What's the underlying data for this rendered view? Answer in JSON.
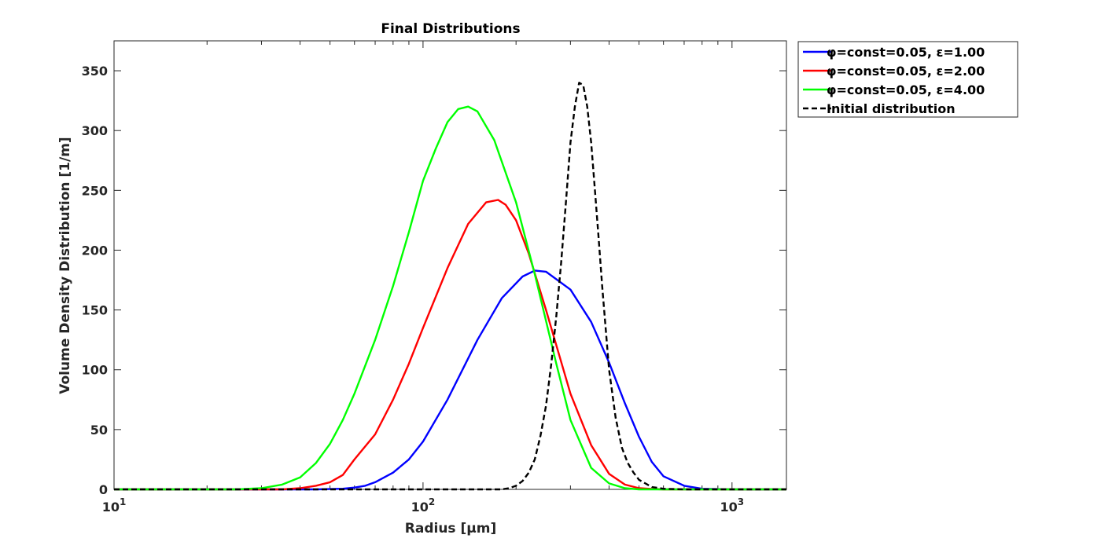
{
  "chart_data": {
    "type": "line",
    "title": "Final Distributions",
    "xlabel": "Radius [μm]",
    "ylabel": "Volume Density Distribution [1/m]",
    "xscale": "log",
    "xlim": [
      10,
      1500
    ],
    "ylim": [
      0,
      375
    ],
    "x_ticks": [
      10,
      100,
      1000
    ],
    "x_tick_labels": [
      {
        "base": "10",
        "exp": "1"
      },
      {
        "base": "10",
        "exp": "2"
      },
      {
        "base": "10",
        "exp": "3"
      }
    ],
    "y_ticks": [
      0,
      50,
      100,
      150,
      200,
      250,
      300,
      350
    ],
    "grid": false,
    "legend_position": "outside-top-right",
    "series": [
      {
        "name": "φ=const=0.05, ε=1.00",
        "color": "#0000ff",
        "dash": "solid",
        "x": [
          10,
          45,
          55,
          60,
          65,
          70,
          80,
          90,
          100,
          120,
          150,
          180,
          210,
          230,
          250,
          300,
          350,
          400,
          450,
          500,
          550,
          600,
          700,
          800,
          1000,
          1500
        ],
        "y": [
          0,
          0,
          0.5,
          1.5,
          3,
          6,
          14,
          25,
          40,
          75,
          125,
          160,
          178,
          183,
          182,
          167,
          140,
          106,
          72,
          44,
          23,
          11,
          3,
          0.5,
          0,
          0
        ]
      },
      {
        "name": "φ=const=0.05, ε=2.00",
        "color": "#ff0000",
        "dash": "solid",
        "x": [
          10,
          35,
          40,
          45,
          50,
          55,
          60,
          70,
          80,
          90,
          100,
          120,
          140,
          160,
          175,
          185,
          200,
          220,
          250,
          300,
          350,
          400,
          450,
          500,
          550,
          600,
          700,
          1000,
          1500
        ],
        "y": [
          0,
          0,
          1,
          3,
          6,
          12,
          25,
          46,
          75,
          105,
          135,
          185,
          222,
          240,
          242,
          238,
          225,
          197,
          150,
          80,
          37,
          13,
          4,
          1,
          0.3,
          0,
          0,
          0,
          0
        ]
      },
      {
        "name": "φ=const=0.05, ε=4.00",
        "color": "#00ff00",
        "dash": "solid",
        "x": [
          10,
          25,
          30,
          35,
          40,
          45,
          50,
          55,
          60,
          70,
          80,
          90,
          100,
          110,
          120,
          130,
          140,
          150,
          170,
          200,
          230,
          270,
          300,
          350,
          400,
          450,
          500,
          600,
          1000,
          1500
        ],
        "y": [
          0,
          0,
          1,
          4,
          10,
          22,
          38,
          58,
          80,
          125,
          170,
          215,
          258,
          285,
          307,
          318,
          320,
          316,
          292,
          240,
          180,
          105,
          58,
          18,
          5,
          1,
          0,
          0,
          0,
          0
        ]
      },
      {
        "name": "Initial distribution",
        "color": "#000000",
        "dash": "dashed",
        "x": [
          10,
          180,
          190,
          200,
          210,
          220,
          230,
          240,
          250,
          260,
          270,
          280,
          290,
          300,
          310,
          320,
          330,
          340,
          350,
          360,
          370,
          380,
          390,
          400,
          420,
          440,
          460,
          480,
          500,
          550,
          600,
          700,
          1000,
          1500
        ],
        "y": [
          0,
          0,
          1,
          3,
          7,
          14,
          25,
          45,
          70,
          105,
          145,
          190,
          240,
          290,
          320,
          340,
          338,
          320,
          290,
          250,
          210,
          170,
          135,
          100,
          60,
          35,
          22,
          14,
          8,
          2,
          0.5,
          0,
          0,
          0
        ]
      }
    ]
  }
}
